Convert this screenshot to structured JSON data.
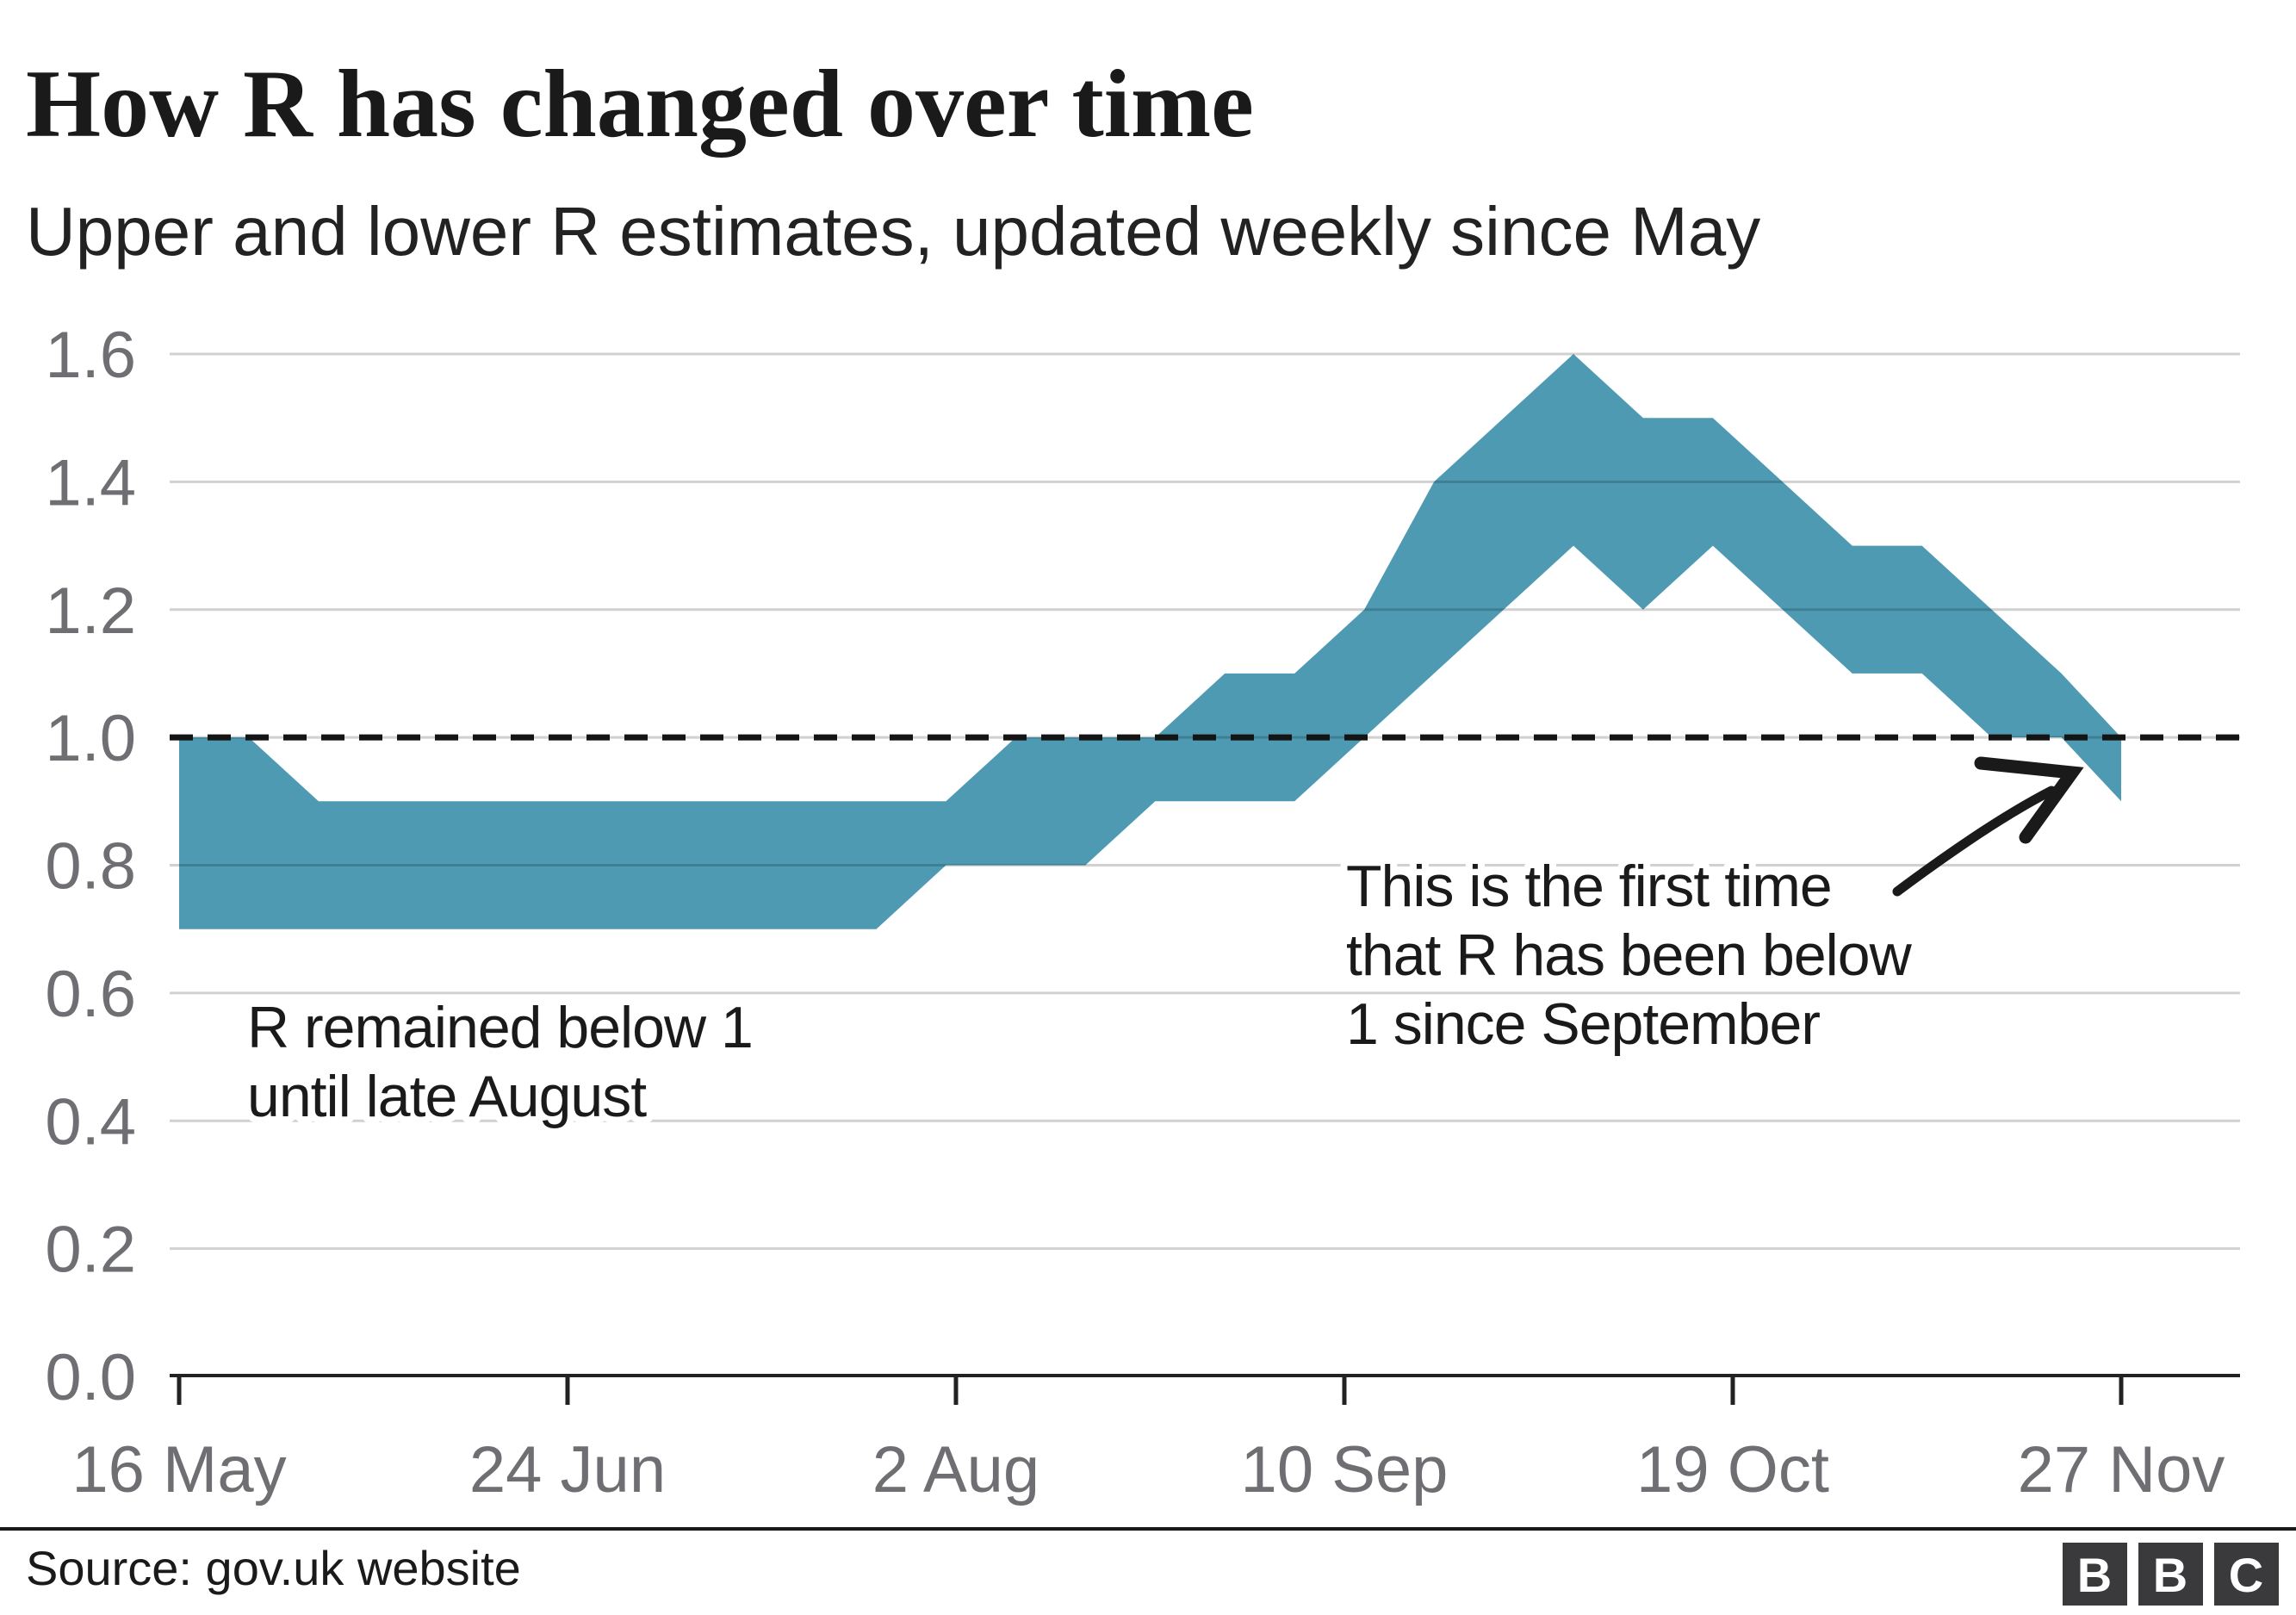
{
  "header": {
    "title": "How R has changed over time",
    "subtitle": "Upper and lower R estimates, updated weekly since May"
  },
  "chart_data": {
    "type": "area",
    "description": "Range band between weekly lower and upper R estimates",
    "title": "How R has changed over time",
    "xlabel": "",
    "ylabel": "R",
    "ylim": [
      0,
      1.6
    ],
    "x_range_days": [
      0,
      195
    ],
    "grid": "horizontal",
    "legend": "none",
    "band_color": "#4f9ab3",
    "reference_line": {
      "value": 1.0,
      "style": "dashed"
    },
    "y_ticks": [
      0.0,
      0.2,
      0.4,
      0.6,
      0.8,
      1.0,
      1.2,
      1.4,
      1.6
    ],
    "x_ticks": [
      {
        "label": "16 May",
        "day": 0
      },
      {
        "label": "24 Jun",
        "day": 39
      },
      {
        "label": "2 Aug",
        "day": 78
      },
      {
        "label": "10 Sep",
        "day": 117
      },
      {
        "label": "19 Oct",
        "day": 156
      },
      {
        "label": "27 Nov",
        "day": 195
      }
    ],
    "points": [
      {
        "date": "16 May",
        "day": 0,
        "lower": 0.7,
        "upper": 1.0
      },
      {
        "date": "23 May",
        "day": 7,
        "lower": 0.7,
        "upper": 1.0
      },
      {
        "date": "30 May",
        "day": 14,
        "lower": 0.7,
        "upper": 0.9
      },
      {
        "date": "6 Jun",
        "day": 21,
        "lower": 0.7,
        "upper": 0.9
      },
      {
        "date": "13 Jun",
        "day": 28,
        "lower": 0.7,
        "upper": 0.9
      },
      {
        "date": "20 Jun",
        "day": 35,
        "lower": 0.7,
        "upper": 0.9
      },
      {
        "date": "27 Jun",
        "day": 42,
        "lower": 0.7,
        "upper": 0.9
      },
      {
        "date": "4 Jul",
        "day": 49,
        "lower": 0.7,
        "upper": 0.9
      },
      {
        "date": "11 Jul",
        "day": 56,
        "lower": 0.7,
        "upper": 0.9
      },
      {
        "date": "18 Jul",
        "day": 63,
        "lower": 0.7,
        "upper": 0.9
      },
      {
        "date": "25 Jul",
        "day": 70,
        "lower": 0.7,
        "upper": 0.9
      },
      {
        "date": "1 Aug",
        "day": 77,
        "lower": 0.8,
        "upper": 0.9
      },
      {
        "date": "8 Aug",
        "day": 84,
        "lower": 0.8,
        "upper": 1.0
      },
      {
        "date": "15 Aug",
        "day": 91,
        "lower": 0.8,
        "upper": 1.0
      },
      {
        "date": "22 Aug",
        "day": 98,
        "lower": 0.9,
        "upper": 1.0
      },
      {
        "date": "29 Aug",
        "day": 105,
        "lower": 0.9,
        "upper": 1.1
      },
      {
        "date": "5 Sep",
        "day": 112,
        "lower": 0.9,
        "upper": 1.1
      },
      {
        "date": "12 Sep",
        "day": 119,
        "lower": 1.0,
        "upper": 1.2
      },
      {
        "date": "19 Sep",
        "day": 126,
        "lower": 1.1,
        "upper": 1.4
      },
      {
        "date": "26 Sep",
        "day": 133,
        "lower": 1.2,
        "upper": 1.5
      },
      {
        "date": "3 Oct",
        "day": 140,
        "lower": 1.3,
        "upper": 1.6
      },
      {
        "date": "10 Oct",
        "day": 147,
        "lower": 1.2,
        "upper": 1.5
      },
      {
        "date": "17 Oct",
        "day": 154,
        "lower": 1.3,
        "upper": 1.5
      },
      {
        "date": "24 Oct",
        "day": 161,
        "lower": 1.2,
        "upper": 1.4
      },
      {
        "date": "31 Oct",
        "day": 168,
        "lower": 1.1,
        "upper": 1.3
      },
      {
        "date": "7 Nov",
        "day": 175,
        "lower": 1.1,
        "upper": 1.3
      },
      {
        "date": "14 Nov",
        "day": 182,
        "lower": 1.0,
        "upper": 1.2
      },
      {
        "date": "21 Nov",
        "day": 189,
        "lower": 1.0,
        "upper": 1.1
      },
      {
        "date": "27 Nov",
        "day": 195,
        "lower": 0.9,
        "upper": 1.0
      }
    ]
  },
  "annotations": {
    "left": {
      "lines": [
        "R remained below 1",
        "until late August"
      ]
    },
    "right": {
      "lines": [
        "This is the first time",
        "that R has been below",
        "1 since September"
      ]
    }
  },
  "footer": {
    "source": "Source: gov.uk website",
    "logo_letters": [
      "B",
      "B",
      "C"
    ]
  },
  "colors": {
    "band": "#4f9ab3",
    "grid_line": "#d1d1d1",
    "reference_line": "#141414",
    "axis": "#222222",
    "tick_label": "#6e6e73",
    "text": "#1a1a1a",
    "logo_background": "#3a3a3c",
    "logo_text": "#ffffff",
    "background": "#ffffff"
  }
}
